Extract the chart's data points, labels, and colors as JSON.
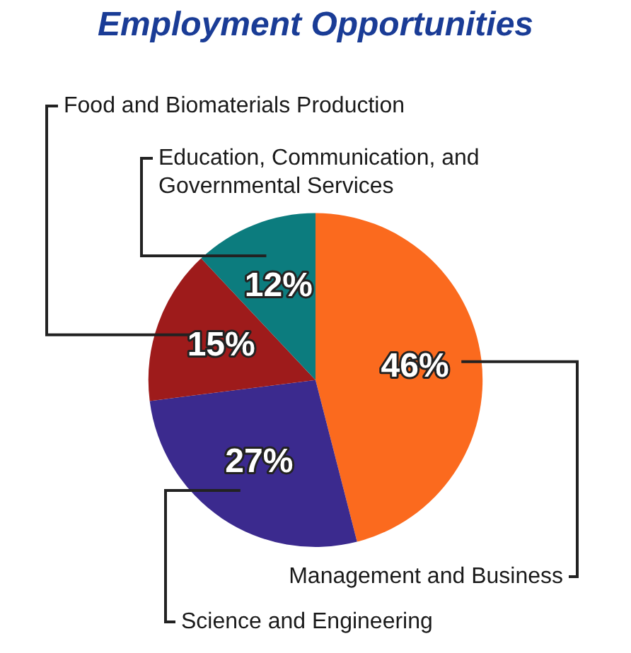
{
  "chart_data": {
    "type": "pie",
    "title": "Employment Opportunities",
    "categories": [
      "Management and Business",
      "Science and Engineering",
      "Food and Biomaterials Production",
      "Education, Communication, and Governmental Services"
    ],
    "values": [
      46,
      27,
      15,
      12
    ],
    "colors": [
      "#fb6a1e",
      "#3b2a8e",
      "#9e1b1b",
      "#0c7c7e"
    ],
    "value_labels": [
      "46%",
      "27%",
      "15%",
      "12%"
    ],
    "legend": false
  }
}
